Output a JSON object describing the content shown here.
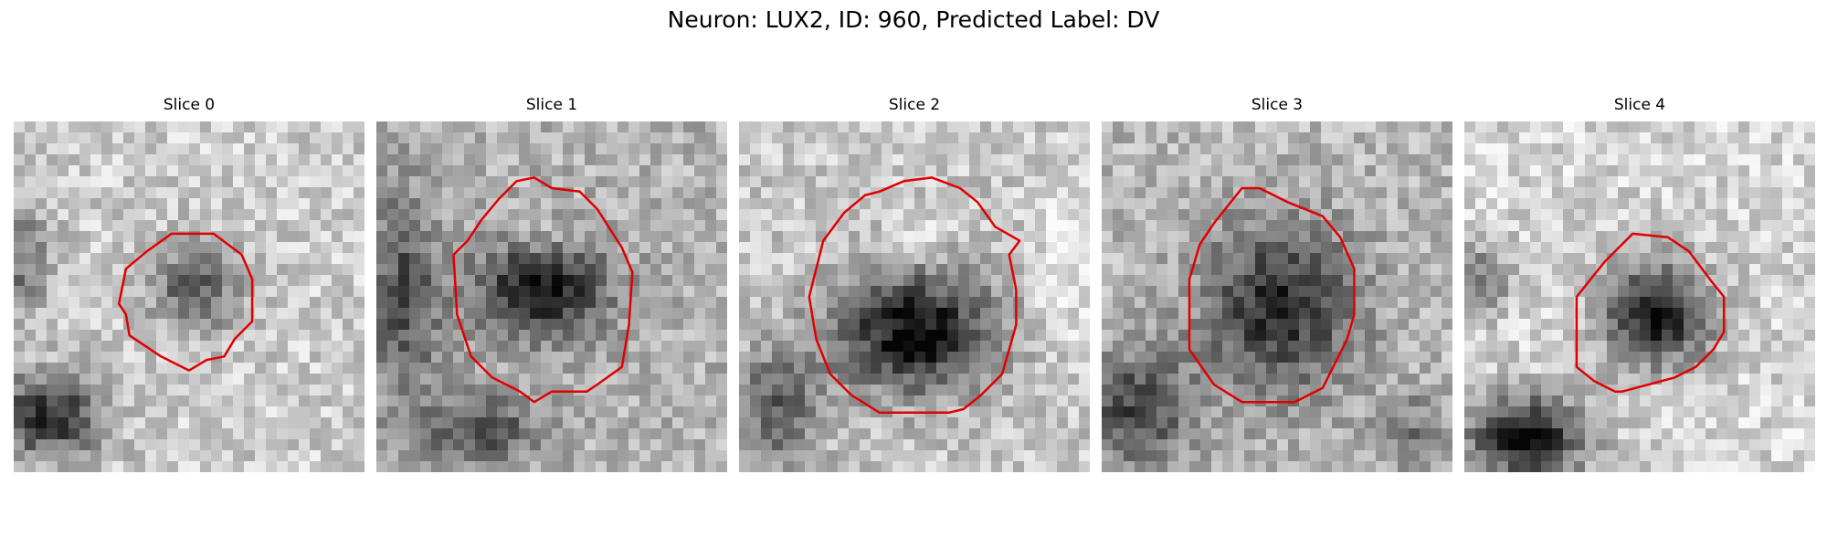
{
  "figure": {
    "title": "Neuron: LUX2, ID: 960, Predicted Label: DV"
  },
  "panels": [
    {
      "title": "Slice 0",
      "contour_color": "#e00000"
    },
    {
      "title": "Slice 1",
      "contour_color": "#e00000"
    },
    {
      "title": "Slice 2",
      "contour_color": "#e00000"
    },
    {
      "title": "Slice 3",
      "contour_color": "#e00000"
    },
    {
      "title": "Slice 4",
      "contour_color": "#e00000"
    }
  ]
}
